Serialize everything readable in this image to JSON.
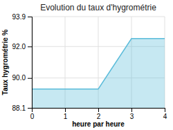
{
  "chart_data": {
    "type": "area",
    "title": "Evolution du taux d'hygrométrie",
    "xlabel": "heure par heure",
    "ylabel": "Taux hygrométrie %",
    "x": [
      0,
      1,
      2,
      3,
      4
    ],
    "values": [
      89.3,
      89.3,
      89.3,
      92.5,
      92.5
    ],
    "color": "#5bbcda",
    "xlim": [
      0,
      4
    ],
    "ylim": [
      88.1,
      93.9
    ],
    "xticks": [
      0,
      1,
      2,
      3,
      4
    ],
    "yticks": [
      88.1,
      {
        "value": 90.0,
        "label": "90.0"
      },
      {
        "value": 92.0,
        "label": "92.0"
      },
      93.9
    ],
    "grid": true
  }
}
